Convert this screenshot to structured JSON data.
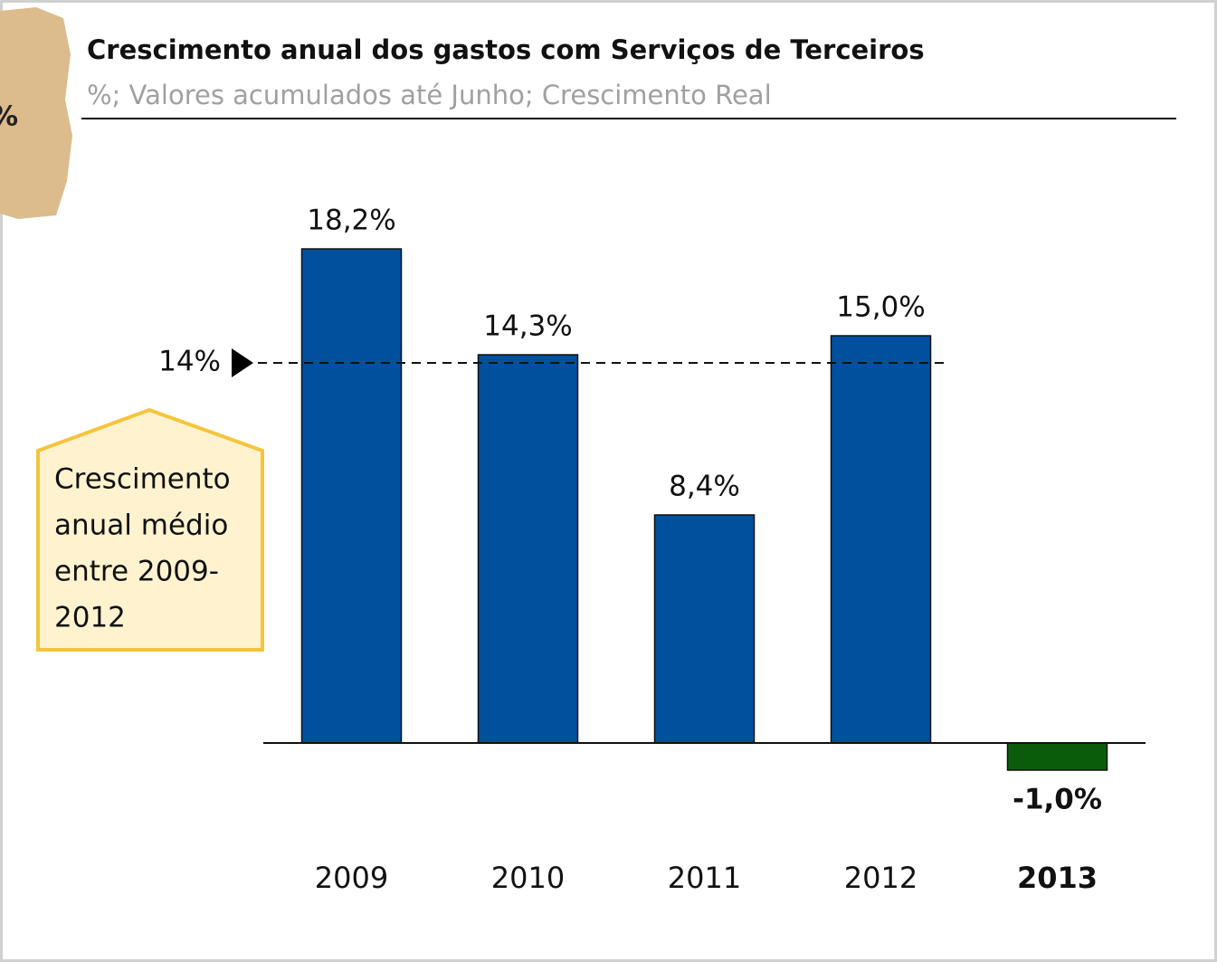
{
  "chart_data": {
    "type": "bar",
    "title": "Crescimento anual dos gastos com Serviços de Terceiros",
    "subtitle": "%; Valores acumulados até Junho; Crescimento Real",
    "side_note": "%",
    "categories": [
      "2009",
      "2010",
      "2011",
      "2012",
      "2013"
    ],
    "values": [
      18.2,
      14.3,
      8.4,
      15.0,
      -1.0
    ],
    "value_labels": [
      "18,2%",
      "14,3%",
      "8,4%",
      "15,0%",
      "-1,0%"
    ],
    "colors": [
      "#00509e",
      "#00509e",
      "#00509e",
      "#00509e",
      "#0a5c0a"
    ],
    "bold": [
      false,
      false,
      false,
      false,
      true
    ],
    "ylim": [
      -2,
      22
    ],
    "reference_line": {
      "value": 14,
      "label": "14%"
    },
    "callout": [
      "Crescimento",
      "anual médio",
      "entre 2009-",
      "2012"
    ]
  }
}
